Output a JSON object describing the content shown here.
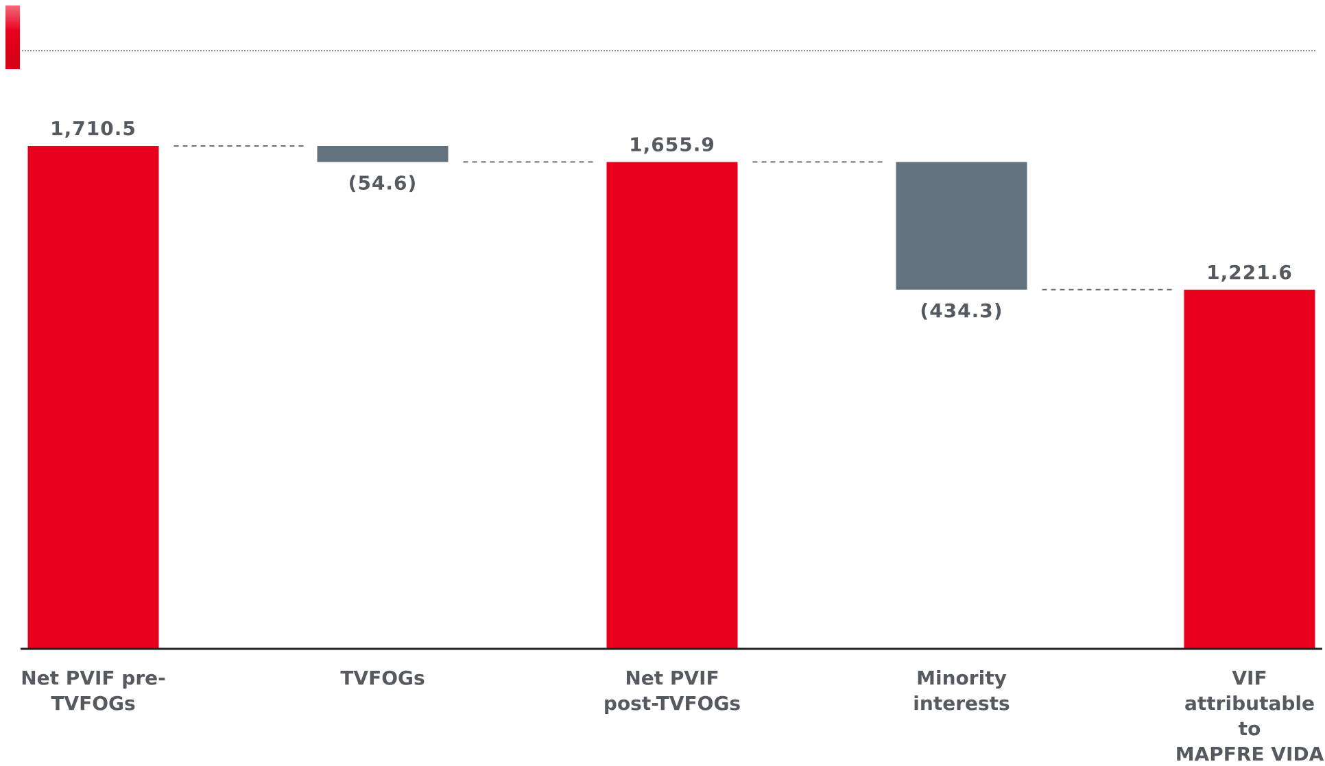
{
  "colors": {
    "total": "#e8001d",
    "decrease": "#62737f",
    "connector": "#62737f",
    "axis": "#222222",
    "text": "#555a60"
  },
  "chart_data": {
    "type": "bar",
    "subtype": "waterfall",
    "categories": [
      "Net PVIF pre-TVFOGs",
      "TVFOGs",
      "Net PVIF post-TVFOGs",
      "Minority interests",
      "VIF attributable to MAPFRE VIDA"
    ],
    "category_label_lines": [
      [
        "Net PVIF pre-",
        "TVFOGs"
      ],
      [
        "TVFOGs"
      ],
      [
        "Net PVIF",
        "post-TVFOGs"
      ],
      [
        "Minority",
        "interests"
      ],
      [
        "VIF",
        "attributable",
        "to",
        "MAPFRE VIDA"
      ]
    ],
    "values": [
      1710.5,
      -54.6,
      1655.9,
      -434.3,
      1221.6
    ],
    "bar_kinds": [
      "total",
      "decrease",
      "total",
      "decrease",
      "total"
    ],
    "data_labels": [
      "1,710.5",
      "(54.6)",
      "1,655.9",
      "(434.3)",
      "1,221.6"
    ],
    "ylim": [
      0,
      1710.5
    ],
    "grid": false,
    "legend": "none",
    "title": "",
    "xlabel": "",
    "ylabel": ""
  }
}
